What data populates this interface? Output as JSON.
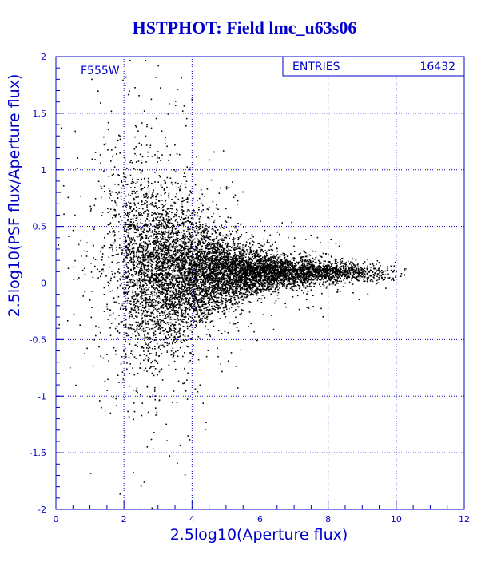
{
  "title": "HSTPHOT: Field lmc_u63s06",
  "chart_data": {
    "type": "scatter",
    "title": "HSTPHOT: Field lmc_u63s06",
    "xlabel": "2.5log10(Aperture flux)",
    "ylabel": "2.5log10(PSF flux/Aperture flux)",
    "xlim": [
      0,
      12
    ],
    "ylim": [
      -2,
      2
    ],
    "x_ticks": [
      "0",
      "2",
      "4",
      "6",
      "8",
      "10",
      "12"
    ],
    "y_ticks": [
      "-2",
      "-1.5",
      "-1",
      "-0.5",
      "0",
      "0.5",
      "1",
      "1.5",
      "2"
    ],
    "grid": true,
    "annotation": "F555W",
    "stats": {
      "label": "ENTRIES",
      "value": "16432"
    },
    "reference_line": {
      "y": 0,
      "color": "#cc0000",
      "style": "dashed"
    },
    "point_color": "#000000",
    "axis_color": "#0000cc",
    "title_color": "#0000cc",
    "density_profile": [
      {
        "x": 0.25,
        "median": 0.45,
        "spread": 0.75,
        "weight": 25
      },
      {
        "x": 0.75,
        "median": 0.4,
        "spread": 0.65,
        "weight": 60
      },
      {
        "x": 1.25,
        "median": 0.3,
        "spread": 0.55,
        "weight": 160
      },
      {
        "x": 1.75,
        "median": 0.2,
        "spread": 0.5,
        "weight": 400
      },
      {
        "x": 2.25,
        "median": 0.15,
        "spread": 0.45,
        "weight": 1200
      },
      {
        "x": 2.75,
        "median": 0.12,
        "spread": 0.4,
        "weight": 1600
      },
      {
        "x": 3.25,
        "median": 0.1,
        "spread": 0.34,
        "weight": 1800
      },
      {
        "x": 3.75,
        "median": 0.1,
        "spread": 0.28,
        "weight": 1800
      },
      {
        "x": 4.25,
        "median": 0.1,
        "spread": 0.22,
        "weight": 1700
      },
      {
        "x": 4.75,
        "median": 0.1,
        "spread": 0.17,
        "weight": 1600
      },
      {
        "x": 5.25,
        "median": 0.1,
        "spread": 0.13,
        "weight": 1500
      },
      {
        "x": 5.75,
        "median": 0.1,
        "spread": 0.1,
        "weight": 1300
      },
      {
        "x": 6.25,
        "median": 0.1,
        "spread": 0.08,
        "weight": 1100
      },
      {
        "x": 6.75,
        "median": 0.1,
        "spread": 0.07,
        "weight": 900
      },
      {
        "x": 7.25,
        "median": 0.1,
        "spread": 0.06,
        "weight": 750
      },
      {
        "x": 7.75,
        "median": 0.1,
        "spread": 0.05,
        "weight": 600
      },
      {
        "x": 8.25,
        "median": 0.1,
        "spread": 0.05,
        "weight": 450
      },
      {
        "x": 8.75,
        "median": 0.1,
        "spread": 0.04,
        "weight": 300
      },
      {
        "x": 9.25,
        "median": 0.1,
        "spread": 0.04,
        "weight": 180
      },
      {
        "x": 9.75,
        "median": 0.1,
        "spread": 0.04,
        "weight": 80
      },
      {
        "x": 10.1,
        "median": 0.1,
        "spread": 0.03,
        "weight": 20
      }
    ]
  }
}
